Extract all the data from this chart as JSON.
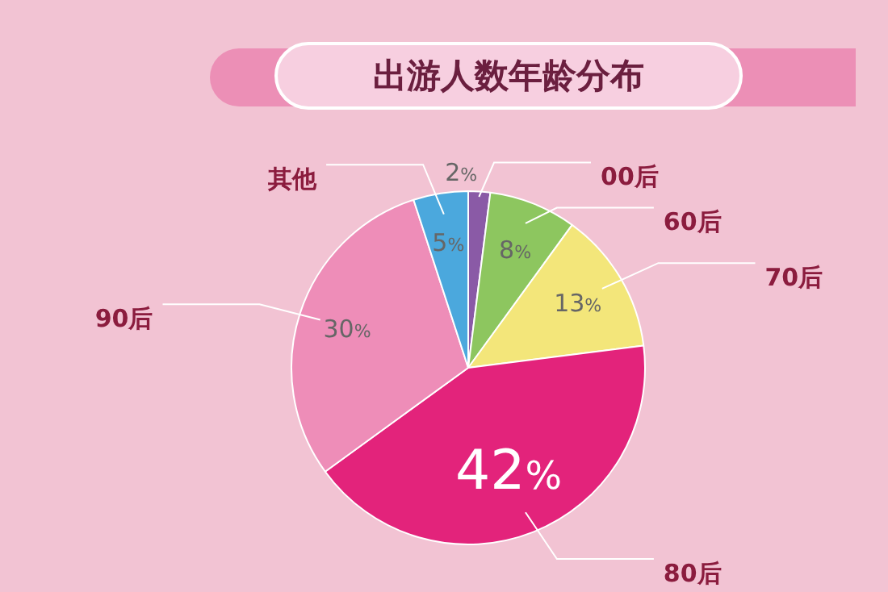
{
  "chart_data": {
    "type": "pie",
    "title": "出游人数年龄分布",
    "categories": [
      "00后",
      "60后",
      "70后",
      "80后",
      "90后",
      "其他"
    ],
    "values": [
      2,
      8,
      13,
      42,
      30,
      5
    ],
    "value_labels": [
      "2%",
      "8%",
      "13%",
      "42%",
      "30%",
      "5%"
    ],
    "colors": [
      "#8a5aa6",
      "#8dc65f",
      "#f3e67a",
      "#e3237b",
      "#ee8db8",
      "#4ba8dd"
    ],
    "legend": false
  }
}
